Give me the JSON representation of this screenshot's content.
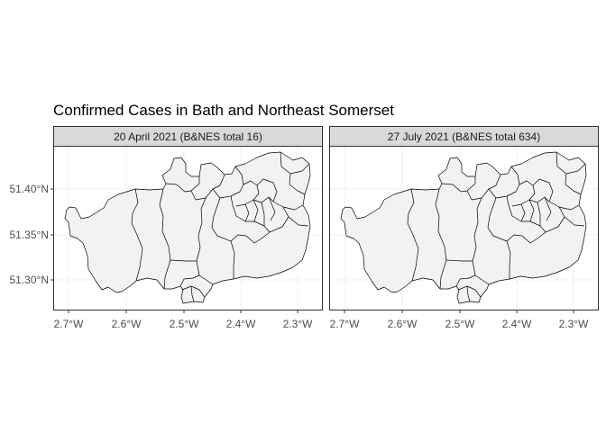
{
  "title": "Confirmed Cases in Bath and Northeast Somerset",
  "panels": [
    {
      "strip": "20 April 2021 (B&NES total 16)"
    },
    {
      "strip": "27 July 2021 (B&NES total 634)"
    }
  ],
  "y_ticks": [
    "51.40°N",
    "51.35°N",
    "51.30°N"
  ],
  "x_ticks": [
    "2.7°W",
    "2.6°W",
    "2.5°W",
    "2.4°W",
    "2.3°W"
  ],
  "chart_data": {
    "type": "choropleth map (faceted)",
    "facets": [
      "20 April 2021 (B&NES total 16)",
      "27 July 2021 (B&NES total 634)"
    ],
    "x_axis": {
      "tick_values": [
        -2.7,
        -2.6,
        -2.5,
        -2.4,
        -2.3
      ],
      "tick_labels": [
        "2.7°W",
        "2.6°W",
        "2.5°W",
        "2.4°W",
        "2.3°W"
      ]
    },
    "y_axis": {
      "tick_values": [
        51.4,
        51.35,
        51.3
      ],
      "tick_labels": [
        "51.40°N",
        "51.35°N",
        "51.30°N"
      ]
    },
    "fill_color": "#f2f2f2",
    "border_color": "#000000",
    "legend": "none",
    "grid": true
  }
}
